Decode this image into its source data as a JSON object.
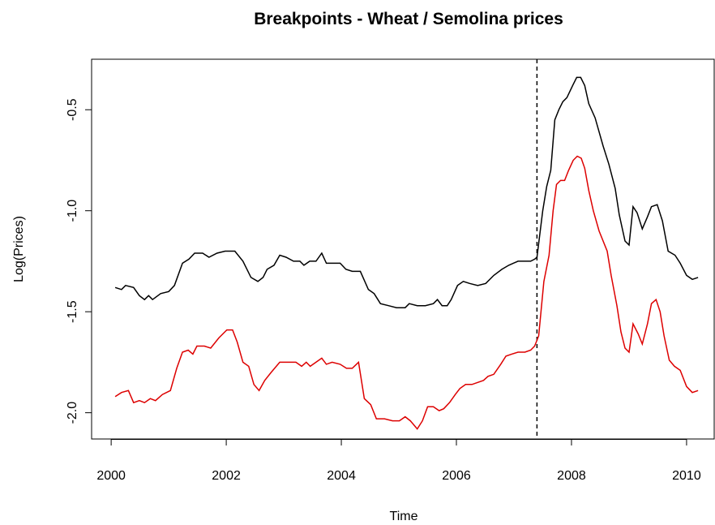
{
  "chart_data": {
    "type": "line",
    "title": "Breakpoints - Wheat / Semolina prices",
    "xlabel": "Time",
    "ylabel": "Log(Prices)",
    "xlim": [
      1999.66,
      2010.48
    ],
    "ylim": [
      -2.13,
      -0.25
    ],
    "xticks": [
      2000,
      2002,
      2004,
      2006,
      2008,
      2010
    ],
    "yticks": [
      -0.5,
      {
        "value": -1,
        "label": "-1.0"
      },
      -1.5,
      {
        "value": -2,
        "label": "-2.0"
      }
    ],
    "vlines": [
      2007.4
    ],
    "series": [
      {
        "color": "#000000",
        "x": [
          2000.07,
          2000.18,
          2000.25,
          2000.39,
          2000.49,
          2000.58,
          2000.65,
          2000.72,
          2000.86,
          2001.0,
          2001.1,
          2001.24,
          2001.35,
          2001.45,
          2001.59,
          2001.7,
          2001.84,
          2001.98,
          2002.15,
          2002.29,
          2002.43,
          2002.55,
          2002.64,
          2002.71,
          2002.83,
          2002.93,
          2003.04,
          2003.17,
          2003.28,
          2003.35,
          2003.45,
          2003.56,
          2003.66,
          2003.74,
          2003.87,
          2003.98,
          2004.08,
          2004.19,
          2004.33,
          2004.47,
          2004.57,
          2004.68,
          2004.82,
          2004.96,
          2005.11,
          2005.18,
          2005.32,
          2005.46,
          2005.6,
          2005.67,
          2005.75,
          2005.84,
          2005.91,
          2006.02,
          2006.12,
          2006.23,
          2006.37,
          2006.51,
          2006.65,
          2006.79,
          2006.91,
          2007.07,
          2007.22,
          2007.29,
          2007.36,
          2007.4,
          2007.5,
          2007.57,
          2007.64,
          2007.71,
          2007.78,
          2007.85,
          2007.92,
          2008.02,
          2008.09,
          2008.16,
          2008.23,
          2008.3,
          2008.41,
          2008.55,
          2008.65,
          2008.76,
          2008.83,
          2008.93,
          2009.0,
          2009.07,
          2009.14,
          2009.23,
          2009.32,
          2009.39,
          2009.49,
          2009.58,
          2009.68,
          2009.8,
          2009.89,
          2010.0,
          2010.1,
          2010.2
        ],
        "values": [
          -1.38,
          -1.39,
          -1.37,
          -1.38,
          -1.42,
          -1.44,
          -1.42,
          -1.44,
          -1.41,
          -1.4,
          -1.37,
          -1.26,
          -1.24,
          -1.21,
          -1.21,
          -1.23,
          -1.21,
          -1.2,
          -1.2,
          -1.25,
          -1.33,
          -1.35,
          -1.33,
          -1.29,
          -1.27,
          -1.22,
          -1.23,
          -1.25,
          -1.25,
          -1.27,
          -1.25,
          -1.25,
          -1.21,
          -1.26,
          -1.26,
          -1.26,
          -1.29,
          -1.3,
          -1.3,
          -1.39,
          -1.41,
          -1.46,
          -1.47,
          -1.48,
          -1.48,
          -1.46,
          -1.47,
          -1.47,
          -1.46,
          -1.44,
          -1.47,
          -1.47,
          -1.44,
          -1.37,
          -1.35,
          -1.36,
          -1.37,
          -1.36,
          -1.32,
          -1.29,
          -1.27,
          -1.25,
          -1.25,
          -1.25,
          -1.24,
          -1.23,
          -1.0,
          -0.88,
          -0.8,
          -0.55,
          -0.5,
          -0.46,
          -0.44,
          -0.38,
          -0.34,
          -0.34,
          -0.38,
          -0.47,
          -0.54,
          -0.68,
          -0.77,
          -0.89,
          -1.02,
          -1.15,
          -1.17,
          -0.98,
          -1.01,
          -1.09,
          -1.03,
          -0.98,
          -0.97,
          -1.05,
          -1.2,
          -1.22,
          -1.26,
          -1.32,
          -1.34,
          -1.33
        ]
      },
      {
        "color": "#dd0000",
        "x": [
          2000.07,
          2000.18,
          2000.3,
          2000.39,
          2000.49,
          2000.58,
          2000.68,
          2000.77,
          2000.89,
          2001.03,
          2001.14,
          2001.24,
          2001.34,
          2001.42,
          2001.49,
          2001.62,
          2001.73,
          2001.87,
          2002.01,
          2002.11,
          2002.19,
          2002.29,
          2002.39,
          2002.48,
          2002.57,
          2002.67,
          2002.78,
          2002.93,
          2003.07,
          2003.21,
          2003.31,
          2003.39,
          2003.46,
          2003.56,
          2003.66,
          2003.74,
          2003.84,
          2003.98,
          2004.09,
          2004.19,
          2004.3,
          2004.4,
          2004.51,
          2004.61,
          2004.75,
          2004.89,
          2005.01,
          2005.11,
          2005.2,
          2005.32,
          2005.41,
          2005.5,
          2005.6,
          2005.7,
          2005.78,
          2005.88,
          2005.98,
          2006.06,
          2006.16,
          2006.27,
          2006.37,
          2006.47,
          2006.55,
          2006.65,
          2006.77,
          2006.86,
          2006.96,
          2007.07,
          2007.19,
          2007.29,
          2007.36,
          2007.43,
          2007.52,
          2007.61,
          2007.68,
          2007.74,
          2007.81,
          2007.88,
          2007.95,
          2008.03,
          2008.1,
          2008.17,
          2008.23,
          2008.3,
          2008.38,
          2008.48,
          2008.62,
          2008.69,
          2008.79,
          2008.86,
          2008.93,
          2009.0,
          2009.07,
          2009.16,
          2009.23,
          2009.32,
          2009.39,
          2009.47,
          2009.54,
          2009.61,
          2009.7,
          2009.79,
          2009.89,
          2010.0,
          2010.1,
          2010.2
        ],
        "values": [
          -1.92,
          -1.9,
          -1.89,
          -1.95,
          -1.94,
          -1.95,
          -1.93,
          -1.94,
          -1.91,
          -1.89,
          -1.78,
          -1.7,
          -1.69,
          -1.71,
          -1.67,
          -1.67,
          -1.68,
          -1.63,
          -1.59,
          -1.59,
          -1.65,
          -1.75,
          -1.77,
          -1.86,
          -1.89,
          -1.84,
          -1.8,
          -1.75,
          -1.75,
          -1.75,
          -1.77,
          -1.75,
          -1.77,
          -1.75,
          -1.73,
          -1.76,
          -1.75,
          -1.76,
          -1.78,
          -1.78,
          -1.75,
          -1.93,
          -1.96,
          -2.03,
          -2.03,
          -2.04,
          -2.04,
          -2.02,
          -2.04,
          -2.08,
          -2.04,
          -1.97,
          -1.97,
          -1.99,
          -1.98,
          -1.95,
          -1.91,
          -1.88,
          -1.86,
          -1.86,
          -1.85,
          -1.84,
          -1.82,
          -1.81,
          -1.76,
          -1.72,
          -1.71,
          -1.7,
          -1.7,
          -1.69,
          -1.67,
          -1.62,
          -1.35,
          -1.22,
          -1.0,
          -0.87,
          -0.85,
          -0.85,
          -0.8,
          -0.75,
          -0.73,
          -0.74,
          -0.79,
          -0.9,
          -1.0,
          -1.1,
          -1.2,
          -1.32,
          -1.47,
          -1.6,
          -1.68,
          -1.7,
          -1.56,
          -1.61,
          -1.66,
          -1.56,
          -1.46,
          -1.44,
          -1.5,
          -1.62,
          -1.74,
          -1.77,
          -1.79,
          -1.87,
          -1.9,
          -1.89
        ]
      }
    ]
  }
}
